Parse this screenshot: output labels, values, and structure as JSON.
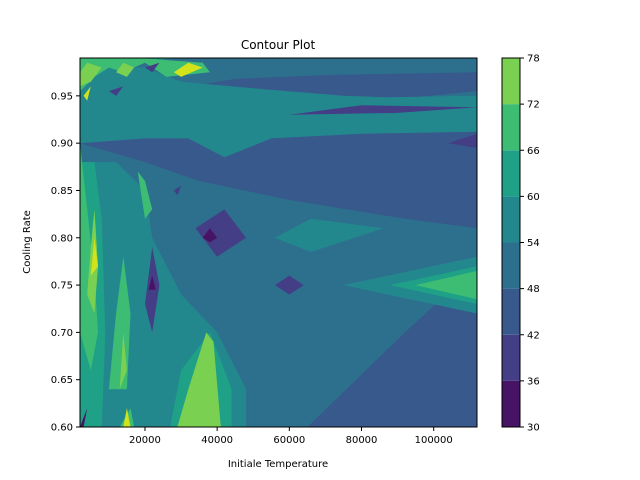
{
  "chart_data": {
    "type": "contour",
    "title": "Contour Plot",
    "xlabel": "Initiale Temperature",
    "ylabel": "Cooling Rate",
    "xlim": [
      2000,
      112000
    ],
    "ylim": [
      0.6,
      0.99
    ],
    "xticks": [
      20000,
      40000,
      60000,
      80000,
      100000
    ],
    "yticks": [
      0.6,
      0.65,
      0.7,
      0.75,
      0.8,
      0.85,
      0.9,
      0.95
    ],
    "colorbar": {
      "levels": [
        30,
        36,
        42,
        48,
        54,
        60,
        66,
        72,
        78
      ],
      "colors": [
        "#471365",
        "#433e85",
        "#38598c",
        "#2d708e",
        "#23888e",
        "#1fa187",
        "#3dbc74",
        "#7ad151",
        "#d2e21b"
      ],
      "background_color": "#2d708e"
    },
    "regions": [
      {
        "color": "#38598c",
        "poly": [
          [
            2000,
            0.99
          ],
          [
            112000,
            0.99
          ],
          [
            112000,
            0.6
          ],
          [
            2000,
            0.6
          ]
        ]
      },
      {
        "color": "#2d708e",
        "poly": [
          [
            2000,
            0.6
          ],
          [
            65000,
            0.6
          ],
          [
            92000,
            0.7
          ],
          [
            112000,
            0.77
          ],
          [
            112000,
            0.81
          ],
          [
            92000,
            0.82
          ],
          [
            60000,
            0.84
          ],
          [
            35000,
            0.86
          ],
          [
            20000,
            0.88
          ],
          [
            2000,
            0.9
          ]
        ]
      },
      {
        "color": "#2d708e",
        "poly": [
          [
            2000,
            0.99
          ],
          [
            112000,
            0.99
          ],
          [
            112000,
            0.975
          ],
          [
            70000,
            0.972
          ],
          [
            45000,
            0.968
          ],
          [
            25000,
            0.955
          ],
          [
            2000,
            0.95
          ]
        ]
      },
      {
        "color": "#2d708e",
        "poly": [
          [
            112000,
            0.915
          ],
          [
            85000,
            0.925
          ],
          [
            70000,
            0.935
          ],
          [
            85000,
            0.945
          ],
          [
            112000,
            0.955
          ]
        ]
      },
      {
        "color": "#23888e",
        "poly": [
          [
            2000,
            0.6
          ],
          [
            48000,
            0.6
          ],
          [
            48000,
            0.64
          ],
          [
            40000,
            0.7
          ],
          [
            30000,
            0.74
          ],
          [
            22000,
            0.8
          ],
          [
            20000,
            0.85
          ],
          [
            12000,
            0.88
          ],
          [
            2000,
            0.88
          ]
        ]
      },
      {
        "color": "#23888e",
        "poly": [
          [
            2000,
            0.95
          ],
          [
            2000,
            0.9
          ],
          [
            20000,
            0.905
          ],
          [
            32000,
            0.905
          ],
          [
            42000,
            0.885
          ],
          [
            55000,
            0.905
          ],
          [
            80000,
            0.91
          ],
          [
            112000,
            0.912
          ],
          [
            112000,
            0.945
          ],
          [
            75000,
            0.95
          ],
          [
            50000,
            0.958
          ],
          [
            30000,
            0.965
          ],
          [
            20000,
            0.98
          ],
          [
            2000,
            0.98
          ]
        ]
      },
      {
        "color": "#23888e",
        "poly": [
          [
            60000,
            0.94
          ],
          [
            70000,
            0.93
          ],
          [
            112000,
            0.94
          ],
          [
            112000,
            0.95
          ],
          [
            80000,
            0.948
          ]
        ]
      },
      {
        "color": "#23888e",
        "poly": [
          [
            56000,
            0.8
          ],
          [
            66000,
            0.82
          ],
          [
            86000,
            0.81
          ],
          [
            78000,
            0.8
          ],
          [
            66000,
            0.785
          ]
        ]
      },
      {
        "color": "#23888e",
        "poly": [
          [
            75000,
            0.75
          ],
          [
            112000,
            0.78
          ],
          [
            112000,
            0.72
          ]
        ]
      },
      {
        "color": "#1fa187",
        "poly": [
          [
            27000,
            0.6
          ],
          [
            44000,
            0.6
          ],
          [
            44000,
            0.64
          ],
          [
            38000,
            0.7
          ],
          [
            30000,
            0.66
          ]
        ]
      },
      {
        "color": "#1fa187",
        "poly": [
          [
            2000,
            0.6
          ],
          [
            8000,
            0.6
          ],
          [
            9000,
            0.7
          ],
          [
            8000,
            0.82
          ],
          [
            6000,
            0.88
          ],
          [
            2000,
            0.88
          ]
        ]
      },
      {
        "color": "#1fa187",
        "poly": [
          [
            88000,
            0.75
          ],
          [
            112000,
            0.73
          ],
          [
            112000,
            0.77
          ]
        ]
      },
      {
        "color": "#1fa187",
        "poly": [
          [
            2000,
            0.96
          ],
          [
            6000,
            0.975
          ],
          [
            12000,
            0.985
          ],
          [
            30000,
            0.99
          ],
          [
            2000,
            0.99
          ]
        ]
      },
      {
        "color": "#3dbc74",
        "poly": [
          [
            95000,
            0.75
          ],
          [
            112000,
            0.735
          ],
          [
            112000,
            0.765
          ]
        ]
      },
      {
        "color": "#3dbc74",
        "poly": [
          [
            2000,
            0.9
          ],
          [
            4000,
            0.83
          ],
          [
            6000,
            0.76
          ],
          [
            7000,
            0.7
          ],
          [
            5000,
            0.66
          ],
          [
            2000,
            0.7
          ]
        ]
      },
      {
        "color": "#3dbc74",
        "poly": [
          [
            10000,
            0.64
          ],
          [
            12000,
            0.72
          ],
          [
            14000,
            0.78
          ],
          [
            16000,
            0.72
          ],
          [
            15000,
            0.64
          ]
        ]
      },
      {
        "color": "#3dbc74",
        "poly": [
          [
            13000,
            0.6
          ],
          [
            16000,
            0.62
          ],
          [
            17000,
            0.6
          ]
        ]
      },
      {
        "color": "#3dbc74",
        "poly": [
          [
            18000,
            0.87
          ],
          [
            20000,
            0.86
          ],
          [
            22000,
            0.83
          ],
          [
            20000,
            0.82
          ]
        ]
      },
      {
        "color": "#3dbc74",
        "poly": [
          [
            2000,
            0.955
          ],
          [
            6000,
            0.97
          ],
          [
            10000,
            0.98
          ],
          [
            14000,
            0.975
          ],
          [
            20000,
            0.985
          ],
          [
            26000,
            0.97
          ],
          [
            38000,
            0.975
          ],
          [
            36000,
            0.985
          ],
          [
            18000,
            0.99
          ],
          [
            2000,
            0.99
          ]
        ]
      },
      {
        "color": "#7ad151",
        "poly": [
          [
            29000,
            0.6
          ],
          [
            41000,
            0.6
          ],
          [
            39000,
            0.69
          ],
          [
            37000,
            0.7
          ],
          [
            32000,
            0.64
          ]
        ]
      },
      {
        "color": "#7ad151",
        "poly": [
          [
            4000,
            0.74
          ],
          [
            5000,
            0.79
          ],
          [
            6000,
            0.83
          ],
          [
            7000,
            0.77
          ],
          [
            6000,
            0.72
          ]
        ]
      },
      {
        "color": "#7ad151",
        "poly": [
          [
            13000,
            0.64
          ],
          [
            14000,
            0.7
          ],
          [
            15000,
            0.66
          ]
        ]
      },
      {
        "color": "#7ad151",
        "poly": [
          [
            2000,
            0.96
          ],
          [
            5000,
            0.965
          ],
          [
            8000,
            0.98
          ],
          [
            4000,
            0.985
          ],
          [
            2000,
            0.975
          ]
        ]
      },
      {
        "color": "#7ad151",
        "poly": [
          [
            12000,
            0.975
          ],
          [
            14000,
            0.985
          ],
          [
            17000,
            0.98
          ],
          [
            15000,
            0.97
          ]
        ]
      },
      {
        "color": "#d2e21b",
        "poly": [
          [
            5000,
            0.76
          ],
          [
            6000,
            0.8
          ],
          [
            7000,
            0.77
          ]
        ]
      },
      {
        "color": "#d2e21b",
        "poly": [
          [
            28000,
            0.975
          ],
          [
            32000,
            0.985
          ],
          [
            36000,
            0.98
          ],
          [
            30000,
            0.97
          ]
        ]
      },
      {
        "color": "#d2e21b",
        "poly": [
          [
            14000,
            0.6
          ],
          [
            15000,
            0.62
          ],
          [
            16000,
            0.6
          ]
        ]
      },
      {
        "color": "#d2e21b",
        "poly": [
          [
            3000,
            0.95
          ],
          [
            5000,
            0.96
          ],
          [
            4000,
            0.945
          ]
        ]
      },
      {
        "color": "#433e85",
        "poly": [
          [
            34000,
            0.81
          ],
          [
            42000,
            0.83
          ],
          [
            48000,
            0.8
          ],
          [
            40000,
            0.78
          ]
        ]
      },
      {
        "color": "#433e85",
        "poly": [
          [
            56000,
            0.75
          ],
          [
            60000,
            0.76
          ],
          [
            64000,
            0.75
          ],
          [
            60000,
            0.74
          ]
        ]
      },
      {
        "color": "#433e85",
        "poly": [
          [
            20000,
            0.73
          ],
          [
            22000,
            0.79
          ],
          [
            24000,
            0.75
          ],
          [
            22000,
            0.7
          ]
        ]
      },
      {
        "color": "#433e85",
        "poly": [
          [
            60000,
            0.93
          ],
          [
            80000,
            0.94
          ],
          [
            112000,
            0.938
          ],
          [
            90000,
            0.932
          ]
        ]
      },
      {
        "color": "#433e85",
        "poly": [
          [
            104000,
            0.9
          ],
          [
            112000,
            0.895
          ],
          [
            112000,
            0.91
          ]
        ]
      },
      {
        "color": "#433e85",
        "poly": [
          [
            10000,
            0.955
          ],
          [
            14000,
            0.96
          ],
          [
            12000,
            0.95
          ]
        ]
      },
      {
        "color": "#433e85",
        "poly": [
          [
            20000,
            0.98
          ],
          [
            24000,
            0.985
          ],
          [
            22000,
            0.975
          ]
        ]
      },
      {
        "color": "#433e85",
        "poly": [
          [
            28000,
            0.85
          ],
          [
            30000,
            0.855
          ],
          [
            29000,
            0.845
          ]
        ]
      },
      {
        "color": "#471365",
        "poly": [
          [
            36000,
            0.8
          ],
          [
            38000,
            0.81
          ],
          [
            40000,
            0.8
          ],
          [
            38000,
            0.795
          ]
        ]
      },
      {
        "color": "#471365",
        "poly": [
          [
            21000,
            0.745
          ],
          [
            22000,
            0.76
          ],
          [
            23000,
            0.745
          ]
        ]
      },
      {
        "color": "#471365",
        "poly": [
          [
            2000,
            0.6
          ],
          [
            4000,
            0.62
          ],
          [
            3000,
            0.6
          ]
        ]
      }
    ]
  }
}
